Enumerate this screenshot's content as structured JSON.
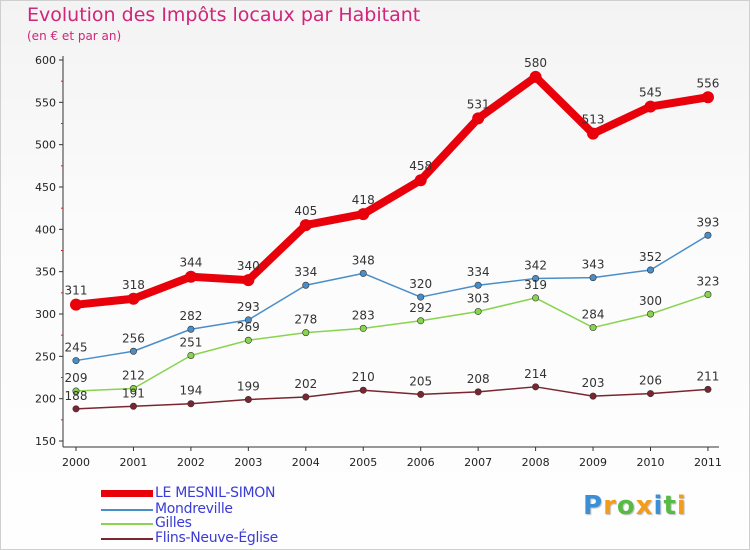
{
  "chart_data": {
    "type": "line",
    "title": "Evolution des Impôts locaux par Habitant",
    "subtitle": "(en € et par an)",
    "xlabel": "",
    "ylabel": "",
    "ylim": [
      150,
      600
    ],
    "yticks": [
      150,
      200,
      250,
      300,
      350,
      400,
      450,
      500,
      550,
      600
    ],
    "categories": [
      "2000",
      "2001",
      "2002",
      "2003",
      "2004",
      "2005",
      "2006",
      "2007",
      "2008",
      "2009",
      "2010",
      "2011"
    ],
    "series": [
      {
        "name": "LE MESNIL-SIMON",
        "color": "#e8000a",
        "values": [
          311,
          318,
          344,
          340,
          405,
          418,
          458,
          531,
          580,
          513,
          545,
          556
        ]
      },
      {
        "name": "Mondreville",
        "color": "#4a8ec9",
        "values": [
          245,
          256,
          282,
          293,
          334,
          348,
          320,
          334,
          342,
          343,
          352,
          393
        ]
      },
      {
        "name": "Gilles",
        "color": "#88d44e",
        "values": [
          209,
          212,
          251,
          269,
          278,
          283,
          292,
          303,
          319,
          284,
          300,
          323
        ]
      },
      {
        "name": "Flins-Neuve-Église",
        "color": "#7a2630",
        "values": [
          188,
          191,
          194,
          199,
          202,
          210,
          205,
          208,
          214,
          203,
          206,
          211
        ]
      }
    ],
    "grid": false,
    "legend": "bottom-left"
  },
  "brand": {
    "letters": [
      "P",
      "r",
      "o",
      "x",
      "i",
      "t",
      "i"
    ],
    "colors": [
      "#3a8fd6",
      "#f39b1a",
      "#59b947",
      "#f39b1a",
      "#3a8fd6",
      "#59b947",
      "#f39b1a"
    ]
  },
  "colors": {
    "title": "#d2247a",
    "legend_text": "#3b3bd6",
    "axis": "#333333",
    "tick_mark": "#cc2222"
  }
}
